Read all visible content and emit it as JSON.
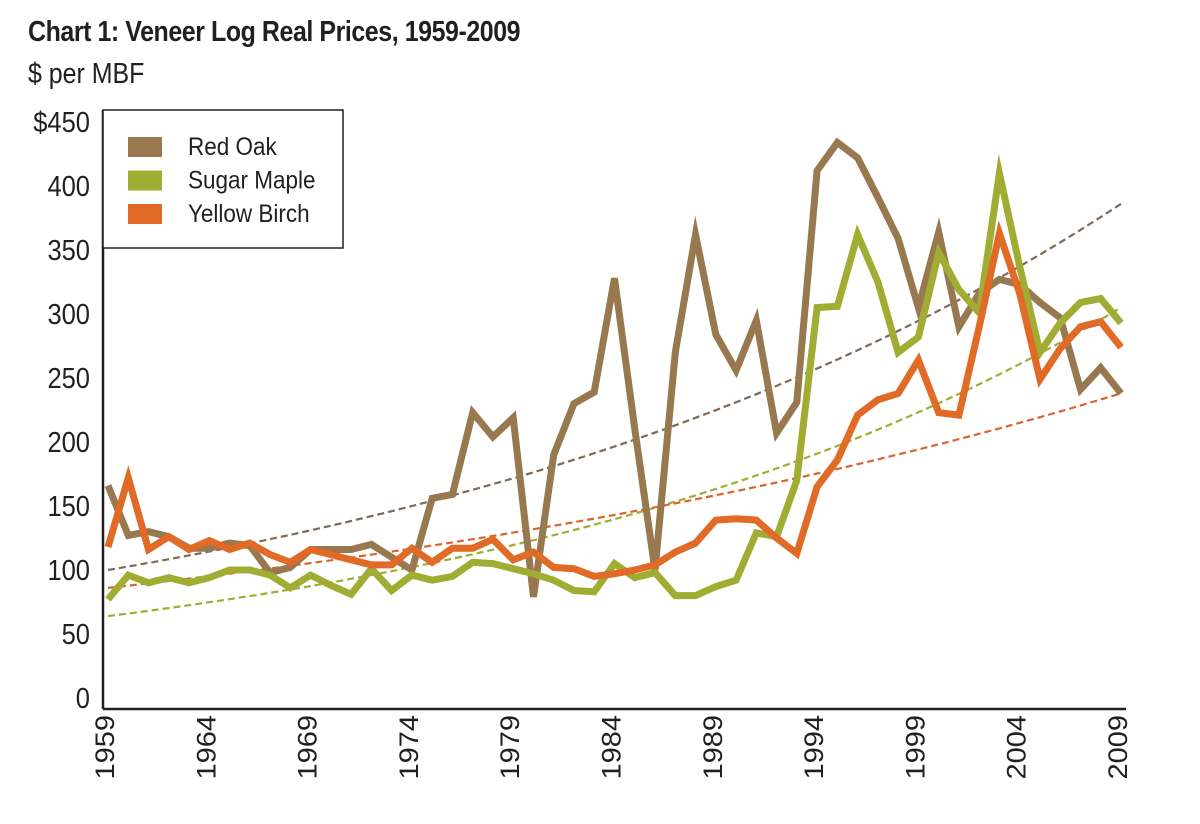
{
  "chart_data": {
    "type": "line",
    "title": "Chart 1: Veneer Log Real Prices, 1959-2009",
    "subtitle": "$ per MBF",
    "xlabel": "",
    "ylabel": "$ per MBF",
    "ylim": [
      0,
      450
    ],
    "xlim": [
      1959,
      2009
    ],
    "grid": false,
    "legend_position": "top-left",
    "y_ticks": [
      0,
      50,
      100,
      150,
      200,
      250,
      300,
      350,
      400,
      450
    ],
    "y_tick_labels": [
      "0",
      "50",
      "100",
      "150",
      "200",
      "250",
      "300",
      "350",
      "400",
      "$450"
    ],
    "x_ticks": [
      1959,
      1964,
      1969,
      1974,
      1979,
      1984,
      1989,
      1994,
      1999,
      2004,
      2009
    ],
    "x_tick_labels": [
      "1959",
      "1964",
      "1969",
      "1974",
      "1979",
      "1984",
      "1989",
      "1994",
      "1999",
      "2004",
      "2009"
    ],
    "x": [
      1959,
      1960,
      1961,
      1962,
      1963,
      1964,
      1965,
      1966,
      1967,
      1968,
      1969,
      1970,
      1971,
      1972,
      1973,
      1974,
      1975,
      1976,
      1977,
      1978,
      1979,
      1980,
      1981,
      1982,
      1983,
      1984,
      1985,
      1986,
      1987,
      1988,
      1989,
      1990,
      1991,
      1992,
      1993,
      1994,
      1995,
      1996,
      1997,
      1998,
      1999,
      2000,
      2001,
      2002,
      2003,
      2004,
      2005,
      2006,
      2007,
      2008,
      2009
    ],
    "series": [
      {
        "name": "Red Oak",
        "color": "#98784e",
        "values": [
          166,
          127,
          130,
          126,
          117,
          117,
          121,
          119,
          98,
          102,
          116,
          116,
          116,
          120,
          110,
          100,
          156,
          159,
          223,
          204,
          219,
          79,
          190,
          230,
          239,
          328,
          210,
          100,
          270,
          362,
          284,
          256,
          295,
          207,
          231,
          412,
          434,
          422,
          391,
          359,
          305,
          364,
          290,
          316,
          327,
          323,
          309,
          297,
          241,
          258,
          238
        ]
      },
      {
        "name": "Sugar Maple",
        "color": "#a1ad32",
        "values": [
          77,
          96,
          90,
          94,
          90,
          94,
          100,
          100,
          96,
          86,
          96,
          88,
          81,
          101,
          84,
          96,
          92,
          95,
          106,
          105,
          101,
          97,
          92,
          84,
          83,
          105,
          94,
          98,
          80,
          80,
          87,
          92,
          129,
          126,
          170,
          305,
          306,
          362,
          325,
          270,
          282,
          348,
          319,
          301,
          410,
          337,
          270,
          293,
          309,
          312,
          293
        ]
      },
      {
        "name": "Yellow Birch",
        "color": "#e06a26",
        "values": [
          118,
          172,
          116,
          126,
          116,
          123,
          116,
          121,
          112,
          106,
          116,
          112,
          108,
          104,
          104,
          117,
          106,
          117,
          117,
          124,
          108,
          114,
          102,
          101,
          95,
          97,
          100,
          104,
          114,
          121,
          139,
          140,
          139,
          125,
          113,
          165,
          186,
          221,
          233,
          238,
          264,
          223,
          221,
          290,
          363,
          316,
          249,
          273,
          290,
          294,
          274
        ]
      }
    ],
    "trendlines": [
      {
        "name": "Red Oak trend",
        "color": "#7d6a58",
        "style": "dashed",
        "type": "exponential",
        "start": [
          1959,
          100
        ],
        "end": [
          2009,
          386
        ]
      },
      {
        "name": "Sugar Maple trend",
        "color": "#a1ad32",
        "style": "dashed",
        "type": "exponential",
        "start": [
          1959,
          64
        ],
        "end": [
          2009,
          305
        ]
      },
      {
        "name": "Yellow Birch trend",
        "color": "#d9652d",
        "style": "dashed",
        "type": "exponential",
        "start": [
          1959,
          86
        ],
        "end": [
          2009,
          238
        ]
      }
    ],
    "legend": [
      {
        "label": "Red Oak",
        "color": "#98784e"
      },
      {
        "label": "Sugar Maple",
        "color": "#a1ad32"
      },
      {
        "label": "Yellow Birch",
        "color": "#e06a26"
      }
    ]
  }
}
